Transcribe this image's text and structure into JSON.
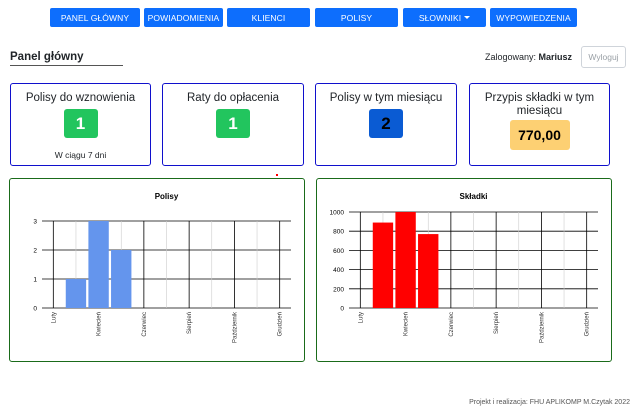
{
  "nav": {
    "items": [
      {
        "label": "PANEL GŁÓWNY"
      },
      {
        "label": "POWIADOMIENIA"
      },
      {
        "label": "KLIENCI"
      },
      {
        "label": "POLISY"
      },
      {
        "label": "SŁOWNIKI"
      },
      {
        "label": "WYPOWIEDZENIA"
      }
    ],
    "color": "#0d6efd"
  },
  "header": {
    "title": "Panel główny",
    "logged_label": "Zalogowany:",
    "user": "Mariusz",
    "logout_label": "Wyloguj"
  },
  "cards": [
    {
      "title": "Polisy do wznowienia",
      "value": "1",
      "sub": "W ciągu 7 dni",
      "color": "#22c55e"
    },
    {
      "title": "Raty do opłacenia",
      "value": "1",
      "color": "#22c55e"
    },
    {
      "title": "Polisy w tym miesiącu",
      "value": "2",
      "color": "#0a5bd3"
    },
    {
      "title": "Przypis składki w tym miesiącu",
      "value": "770,00",
      "color": "#fdd073"
    }
  ],
  "chart_data": [
    {
      "type": "bar",
      "title": "Polisy",
      "categories": [
        "Luty",
        "Marzec",
        "Kwiecień",
        "Maj",
        "Czerwiec",
        "Lipiec",
        "Sierpień",
        "Wrzesień",
        "Październik",
        "Listopad",
        "Grudzień"
      ],
      "tick_labels": [
        "Luty",
        "Kwiecień",
        "Czerwiec",
        "Sierpień",
        "Październik",
        "Grudzień"
      ],
      "values": [
        0,
        1,
        3,
        2,
        0,
        0,
        0,
        0,
        0,
        0,
        0
      ],
      "ylim": [
        0,
        3
      ],
      "yticks": [
        "0",
        "1",
        "2",
        "3"
      ],
      "color": "#6495ed",
      "grid": true
    },
    {
      "type": "bar",
      "title": "Składki",
      "categories": [
        "Luty",
        "Marzec",
        "Kwiecień",
        "Maj",
        "Czerwiec",
        "Lipiec",
        "Sierpień",
        "Wrzesień",
        "Październik",
        "Listopad",
        "Grudzień"
      ],
      "tick_labels": [
        "Luty",
        "Kwiecień",
        "Czerwiec",
        "Sierpień",
        "Październik",
        "Grudzień"
      ],
      "values": [
        0,
        890,
        1000,
        770,
        0,
        0,
        0,
        0,
        0,
        0,
        0
      ],
      "ylim": [
        0,
        1000
      ],
      "yticks": [
        "0",
        "200",
        "400",
        "600",
        "800",
        "1000"
      ],
      "color": "#ff0000",
      "grid": true
    }
  ],
  "footer": "Projekt i realizacja: FHU APLIKOMP M.Czytak 2022"
}
